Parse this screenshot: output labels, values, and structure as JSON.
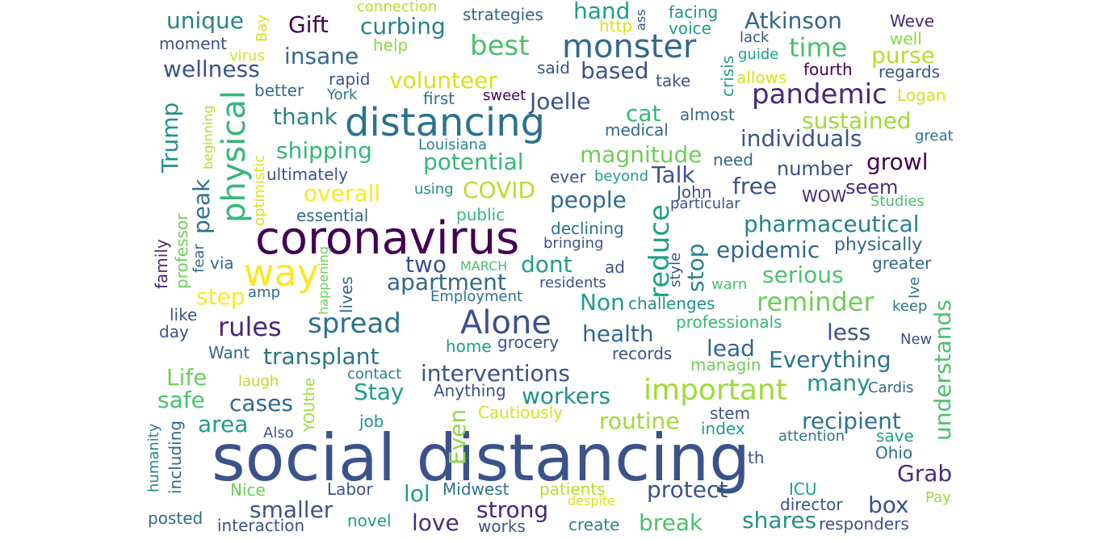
{
  "words": [
    {
      "text": "social distancing",
      "color": "#3b528b"
    },
    {
      "text": "coronavirus",
      "color": "#440154"
    },
    {
      "text": "distancing",
      "color": "#2c728e"
    },
    {
      "text": "monster",
      "color": "#31688e"
    },
    {
      "text": "way",
      "color": "#fde725"
    },
    {
      "text": "Alone",
      "color": "#3b528b"
    },
    {
      "text": "important",
      "color": "#a0da39"
    },
    {
      "text": "best",
      "color": "#4ac16d"
    },
    {
      "text": "pandemic",
      "color": "#482878"
    },
    {
      "text": "physical",
      "color": "#35b779"
    },
    {
      "text": "reduce",
      "color": "#1fa187"
    },
    {
      "text": "spread",
      "color": "#2c728e"
    },
    {
      "text": "rules",
      "color": "#482878"
    },
    {
      "text": "reminder",
      "color": "#6ece58"
    },
    {
      "text": "time",
      "color": "#4ac16d"
    },
    {
      "text": "Atkinson",
      "color": "#31688e"
    },
    {
      "text": "understands",
      "color": "#4ac16d"
    },
    {
      "text": "Trump",
      "color": "#21918c"
    },
    {
      "text": "Everything",
      "color": "#2c728e"
    },
    {
      "text": "interventions",
      "color": "#3b528b"
    },
    {
      "text": "apartment",
      "color": "#31688e"
    },
    {
      "text": "health",
      "color": "#31688e"
    },
    {
      "text": "recipient",
      "color": "#2c728e"
    },
    {
      "text": "transplant",
      "color": "#2c728e"
    },
    {
      "text": "magnitude",
      "color": "#6ece58"
    },
    {
      "text": "individuals",
      "color": "#3b528b"
    },
    {
      "text": "pharmaceutical",
      "color": "#26828e"
    },
    {
      "text": "sustained",
      "color": "#a0da39"
    },
    {
      "text": "epidemic",
      "color": "#31688e"
    },
    {
      "text": "workers",
      "color": "#21918c"
    },
    {
      "text": "routine",
      "color": "#a0da39"
    },
    {
      "text": "protect",
      "color": "#3b528b"
    },
    {
      "text": "break",
      "color": "#4ac16d"
    },
    {
      "text": "shares",
      "color": "#21918c"
    },
    {
      "text": "strong",
      "color": "#482878"
    },
    {
      "text": "potential",
      "color": "#35b779"
    },
    {
      "text": "shipping",
      "color": "#35b779"
    },
    {
      "text": "COVID",
      "color": "#b5de2b"
    },
    {
      "text": "serious",
      "color": "#4ac16d"
    },
    {
      "text": "wellness",
      "color": "#3b528b"
    },
    {
      "text": "volunteer",
      "color": "#d8e219"
    },
    {
      "text": "purse",
      "color": "#b5de2b"
    },
    {
      "text": "overall",
      "color": "#fde725"
    },
    {
      "text": "unique",
      "color": "#26828e"
    },
    {
      "text": "curbing",
      "color": "#26828e"
    },
    {
      "text": "Gift",
      "color": "#440154"
    },
    {
      "text": "insane",
      "color": "#31688e"
    },
    {
      "text": "based",
      "color": "#3b528b"
    },
    {
      "text": "Joelle",
      "color": "#3b528b"
    },
    {
      "text": "cat",
      "color": "#35b779"
    },
    {
      "text": "Talk",
      "color": "#3b528b"
    },
    {
      "text": "thank",
      "color": "#26828e"
    },
    {
      "text": "hand",
      "color": "#1f9e89"
    },
    {
      "text": "peak",
      "color": "#2c728e"
    },
    {
      "text": "step",
      "color": "#fde725"
    },
    {
      "text": "people",
      "color": "#31688e"
    },
    {
      "text": "free",
      "color": "#3b528b"
    },
    {
      "text": "number",
      "color": "#3b528b"
    },
    {
      "text": "growl",
      "color": "#440154"
    },
    {
      "text": "seem",
      "color": "#472d7b"
    },
    {
      "text": "two",
      "color": "#3b528b"
    },
    {
      "text": "dont",
      "color": "#1f9e89"
    },
    {
      "text": "stop",
      "color": "#26828e"
    },
    {
      "text": "Non",
      "color": "#1f9e89"
    },
    {
      "text": "less",
      "color": "#3b528b"
    },
    {
      "text": "lead",
      "color": "#31688e"
    },
    {
      "text": "Stay",
      "color": "#1f9e89"
    },
    {
      "text": "many",
      "color": "#21918c"
    },
    {
      "text": "Life",
      "color": "#6ece58"
    },
    {
      "text": "safe",
      "color": "#4ac16d"
    },
    {
      "text": "cases",
      "color": "#31688e"
    },
    {
      "text": "area",
      "color": "#1f9e89"
    },
    {
      "text": "Even",
      "color": "#8fd744"
    },
    {
      "text": "smaller",
      "color": "#3b528b"
    },
    {
      "text": "lol",
      "color": "#1f9e89"
    },
    {
      "text": "love",
      "color": "#472d7b"
    },
    {
      "text": "box",
      "color": "#3b528b"
    },
    {
      "text": "Grab",
      "color": "#472d7b"
    },
    {
      "text": "Weve",
      "color": "#482878"
    },
    {
      "text": "well",
      "color": "#8fd744"
    },
    {
      "text": "regards",
      "color": "#3b528b"
    },
    {
      "text": "fourth",
      "color": "#440154"
    },
    {
      "text": "Logan",
      "color": "#d8e219"
    },
    {
      "text": "great",
      "color": "#2c728e"
    },
    {
      "text": "crisis",
      "color": "#1f9e89"
    },
    {
      "text": "guide",
      "color": "#1f9e89"
    },
    {
      "text": "lack",
      "color": "#3b528b"
    },
    {
      "text": "allows",
      "color": "#d8e219"
    },
    {
      "text": "facing",
      "color": "#21918c"
    },
    {
      "text": "voice",
      "color": "#1f9e89"
    },
    {
      "text": "http",
      "color": "#d8e219"
    },
    {
      "text": "ass",
      "color": "#3b528b"
    },
    {
      "text": "take",
      "color": "#3b528b"
    },
    {
      "text": "almost",
      "color": "#31688e"
    },
    {
      "text": "need",
      "color": "#31688e"
    },
    {
      "text": "beyond",
      "color": "#1f9e89"
    },
    {
      "text": "medical",
      "color": "#31688e"
    },
    {
      "text": "John",
      "color": "#3b528b"
    },
    {
      "text": "particular",
      "color": "#3b528b"
    },
    {
      "text": "Studies",
      "color": "#4ac16d"
    },
    {
      "text": "WOW",
      "color": "#482878"
    },
    {
      "text": "physically",
      "color": "#31688e"
    },
    {
      "text": "greater",
      "color": "#31688e"
    },
    {
      "text": "Ive",
      "color": "#2c728e"
    },
    {
      "text": "keep",
      "color": "#2c728e"
    },
    {
      "text": "style",
      "color": "#3b528b"
    },
    {
      "text": "warn",
      "color": "#4ac16d"
    },
    {
      "text": "professionals",
      "color": "#35b779"
    },
    {
      "text": "challenges",
      "color": "#21918c"
    },
    {
      "text": "records",
      "color": "#3b528b"
    },
    {
      "text": "managin",
      "color": "#6ece58"
    },
    {
      "text": "New",
      "color": "#3b528b"
    },
    {
      "text": "Cardis",
      "color": "#31688e"
    },
    {
      "text": "save",
      "color": "#1f9e89"
    },
    {
      "text": "Ohio",
      "color": "#2c728e"
    },
    {
      "text": "attention",
      "color": "#2c728e"
    },
    {
      "text": "stem",
      "color": "#3b528b"
    },
    {
      "text": "index",
      "color": "#1f9e89"
    },
    {
      "text": "th",
      "color": "#3b528b"
    },
    {
      "text": "ICU",
      "color": "#1f9e89"
    },
    {
      "text": "director",
      "color": "#3b528b"
    },
    {
      "text": "Pay",
      "color": "#a0da39"
    },
    {
      "text": "responders",
      "color": "#3b528b"
    },
    {
      "text": "create",
      "color": "#26828e"
    },
    {
      "text": "despite",
      "color": "#d8e219"
    },
    {
      "text": "patients",
      "color": "#b5de2b"
    },
    {
      "text": "Midwest",
      "color": "#2c728e"
    },
    {
      "text": "Labor",
      "color": "#3b528b"
    },
    {
      "text": "novel",
      "color": "#1f9e89"
    },
    {
      "text": "works",
      "color": "#3b528b"
    },
    {
      "text": "interaction",
      "color": "#3b528b"
    },
    {
      "text": "posted",
      "color": "#31688e"
    },
    {
      "text": "Nice",
      "color": "#6ece58"
    },
    {
      "text": "Also",
      "color": "#3b528b"
    },
    {
      "text": "job",
      "color": "#21918c"
    },
    {
      "text": "Cautiously",
      "color": "#d8e219"
    },
    {
      "text": "Anything",
      "color": "#3b528b"
    },
    {
      "text": "contact",
      "color": "#26828e"
    },
    {
      "text": "laugh",
      "color": "#b5de2b"
    },
    {
      "text": "YOUthe",
      "color": "#a0da39"
    },
    {
      "text": "including",
      "color": "#31688e"
    },
    {
      "text": "humanity",
      "color": "#26828e"
    },
    {
      "text": "Want",
      "color": "#31688e"
    },
    {
      "text": "home",
      "color": "#1f9e89"
    },
    {
      "text": "grocery",
      "color": "#3b528b"
    },
    {
      "text": "day",
      "color": "#3b528b"
    },
    {
      "text": "like",
      "color": "#3b528b"
    },
    {
      "text": "amp",
      "color": "#31688e"
    },
    {
      "text": "via",
      "color": "#31688e"
    },
    {
      "text": "fear",
      "color": "#31688e"
    },
    {
      "text": "family",
      "color": "#482878"
    },
    {
      "text": "professor",
      "color": "#6ece58"
    },
    {
      "text": "happening",
      "color": "#6ece58"
    },
    {
      "text": "lives",
      "color": "#31688e"
    },
    {
      "text": "Employment",
      "color": "#2c728e"
    },
    {
      "text": "residents",
      "color": "#3b528b"
    },
    {
      "text": "MARCH",
      "color": "#4ac16d"
    },
    {
      "text": "ad",
      "color": "#3b528b"
    },
    {
      "text": "bringing",
      "color": "#3b528b"
    },
    {
      "text": "declining",
      "color": "#2c728e"
    },
    {
      "text": "public",
      "color": "#35b779"
    },
    {
      "text": "essential",
      "color": "#31688e"
    },
    {
      "text": "using",
      "color": "#21918c"
    },
    {
      "text": "ever",
      "color": "#3b528b"
    },
    {
      "text": "Louisiana",
      "color": "#26828e"
    },
    {
      "text": "ultimately",
      "color": "#3b528b"
    },
    {
      "text": "optimistic",
      "color": "#d8e219"
    },
    {
      "text": "beginning",
      "color": "#b5de2b"
    },
    {
      "text": "better",
      "color": "#31688e"
    },
    {
      "text": "York",
      "color": "#2c728e"
    },
    {
      "text": "rapid",
      "color": "#3b528b"
    },
    {
      "text": "first",
      "color": "#2c728e"
    },
    {
      "text": "sweet",
      "color": "#440154"
    },
    {
      "text": "said",
      "color": "#3b528b"
    },
    {
      "text": "help",
      "color": "#8fd744"
    },
    {
      "text": "strategies",
      "color": "#31688e"
    },
    {
      "text": "connection",
      "color": "#b5de2b"
    },
    {
      "text": "Bay",
      "color": "#d8e219"
    },
    {
      "text": "virus",
      "color": "#d8e219"
    },
    {
      "text": "moment",
      "color": "#3b528b"
    }
  ]
}
